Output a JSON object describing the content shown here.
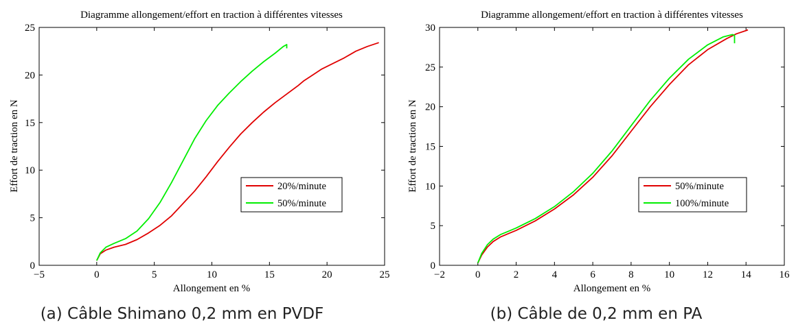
{
  "chart_data": [
    {
      "type": "line",
      "title": "Diagramme allongement/effort en traction à différentes vitesses",
      "xlabel": "Allongement en %",
      "ylabel": "Effort de traction en N",
      "xlim": [
        -5,
        25
      ],
      "ylim": [
        0,
        25
      ],
      "xticks": [
        "−5",
        "0",
        "5",
        "10",
        "15",
        "20",
        "25"
      ],
      "yticks": [
        "0",
        "5",
        "10",
        "15",
        "20",
        "25"
      ],
      "grid": false,
      "legend_position": "center-right",
      "caption": "(a) Câble Shimano 0,2 mm en PVDF",
      "series": [
        {
          "name": "20%/minute",
          "color": "#e00000",
          "points": [
            [
              0,
              0.5
            ],
            [
              0.3,
              1.2
            ],
            [
              0.8,
              1.6
            ],
            [
              1.5,
              1.9
            ],
            [
              2.5,
              2.2
            ],
            [
              3.5,
              2.7
            ],
            [
              4.5,
              3.4
            ],
            [
              5.5,
              4.2
            ],
            [
              6.5,
              5.2
            ],
            [
              7.5,
              6.5
            ],
            [
              8.5,
              7.8
            ],
            [
              9.5,
              9.3
            ],
            [
              10.5,
              10.9
            ],
            [
              11.5,
              12.4
            ],
            [
              12.5,
              13.8
            ],
            [
              13.5,
              15.0
            ],
            [
              14.5,
              16.1
            ],
            [
              15.5,
              17.1
            ],
            [
              16.5,
              18.0
            ],
            [
              17.5,
              18.9
            ],
            [
              18,
              19.4
            ],
            [
              18.5,
              19.8
            ],
            [
              19.5,
              20.6
            ],
            [
              20.5,
              21.2
            ],
            [
              21.5,
              21.8
            ],
            [
              22.5,
              22.5
            ],
            [
              23.5,
              23.0
            ],
            [
              24.5,
              23.4
            ]
          ]
        },
        {
          "name": "50%/minute",
          "color": "#00ee00",
          "points": [
            [
              0,
              0.5
            ],
            [
              0.3,
              1.3
            ],
            [
              0.8,
              1.9
            ],
            [
              1.5,
              2.3
            ],
            [
              2.5,
              2.8
            ],
            [
              3.5,
              3.6
            ],
            [
              4.5,
              4.9
            ],
            [
              5.5,
              6.6
            ],
            [
              6.5,
              8.7
            ],
            [
              7.5,
              11.0
            ],
            [
              8.5,
              13.3
            ],
            [
              9.5,
              15.2
            ],
            [
              10.5,
              16.8
            ],
            [
              11.5,
              18.1
            ],
            [
              12.5,
              19.3
            ],
            [
              13.5,
              20.4
            ],
            [
              14.5,
              21.4
            ],
            [
              15.5,
              22.3
            ],
            [
              16.2,
              23.0
            ],
            [
              16.5,
              23.2
            ],
            [
              16.5,
              22.8
            ]
          ]
        }
      ]
    },
    {
      "type": "line",
      "title": "Diagramme allongement/effort en traction à différentes vitesses",
      "xlabel": "Allongement en %",
      "ylabel": "Effort de traction en N",
      "xlim": [
        -2,
        16
      ],
      "ylim": [
        0,
        30
      ],
      "xticks": [
        "−2",
        "0",
        "2",
        "4",
        "6",
        "8",
        "10",
        "12",
        "14",
        "16"
      ],
      "yticks": [
        "0",
        "5",
        "10",
        "15",
        "20",
        "25",
        "30"
      ],
      "grid": false,
      "legend_position": "center-right",
      "caption": "(b) Câble de 0,2 mm en PA",
      "series": [
        {
          "name": "50%/minute",
          "color": "#e00000",
          "points": [
            [
              0,
              0.3
            ],
            [
              0.2,
              1.3
            ],
            [
              0.5,
              2.3
            ],
            [
              0.8,
              3.0
            ],
            [
              1.2,
              3.6
            ],
            [
              1.6,
              4.0
            ],
            [
              2,
              4.4
            ],
            [
              3,
              5.6
            ],
            [
              4,
              7.1
            ],
            [
              5,
              8.9
            ],
            [
              6,
              11.1
            ],
            [
              7,
              13.8
            ],
            [
              8,
              16.9
            ],
            [
              9,
              20.0
            ],
            [
              10,
              22.8
            ],
            [
              11,
              25.3
            ],
            [
              12,
              27.2
            ],
            [
              13,
              28.6
            ],
            [
              13.5,
              29.2
            ],
            [
              14,
              29.6
            ],
            [
              14.1,
              29.7
            ]
          ]
        },
        {
          "name": "100%/minute",
          "color": "#00ee00",
          "points": [
            [
              0,
              0.3
            ],
            [
              0.2,
              1.5
            ],
            [
              0.5,
              2.6
            ],
            [
              0.8,
              3.3
            ],
            [
              1.2,
              3.9
            ],
            [
              1.6,
              4.3
            ],
            [
              2,
              4.7
            ],
            [
              3,
              5.9
            ],
            [
              4,
              7.4
            ],
            [
              5,
              9.3
            ],
            [
              6,
              11.6
            ],
            [
              7,
              14.4
            ],
            [
              8,
              17.6
            ],
            [
              9,
              20.8
            ],
            [
              10,
              23.6
            ],
            [
              11,
              26.0
            ],
            [
              12,
              27.8
            ],
            [
              12.8,
              28.8
            ],
            [
              13.3,
              29.1
            ],
            [
              13.4,
              29.0
            ],
            [
              13.4,
              28.0
            ]
          ]
        }
      ]
    }
  ]
}
